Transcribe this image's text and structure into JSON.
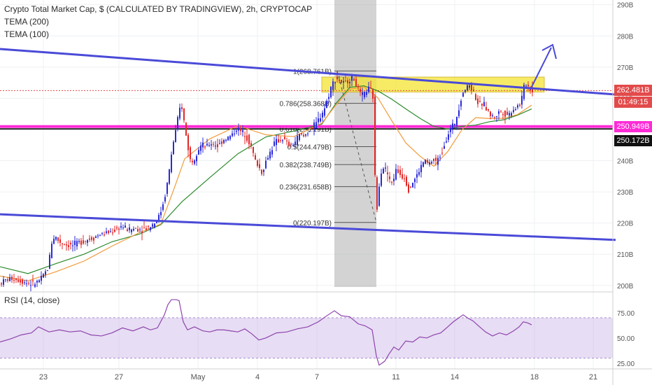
{
  "chart_data": {
    "type": "candlestick",
    "title": "Crypto Total Market Cap, $ (CALCULATED BY TRADINGVIEW), 2h, CRYPTOCAP",
    "indicators": [
      "TEMA (200)",
      "TEMA (100)"
    ],
    "y_axis": {
      "ticks": [
        "200B",
        "210B",
        "220B",
        "230B",
        "240B",
        "250B",
        "260B",
        "270B",
        "280B",
        "290B"
      ],
      "range": [
        199.5,
        291.5
      ]
    },
    "x_axis": {
      "ticks": [
        "23",
        "27",
        "May",
        "4",
        "7",
        "11",
        "14",
        "18",
        "21"
      ]
    },
    "price_labels": {
      "last": "262.481B",
      "countdown": "01:49:15",
      "magenta_level": "250.949B",
      "black_level": "250.172B"
    },
    "levels": {
      "last": 262.481,
      "magenta": 250.949,
      "black": 250.172
    },
    "fibonacci": [
      {
        "label": "1(268.761B)",
        "value": 268.761
      },
      {
        "label": "0.786(258.368B)",
        "value": 258.368
      },
      {
        "label": "0.618(250.191B)",
        "value": 250.191
      },
      {
        "label": "0.5(244.479B)",
        "value": 244.479
      },
      {
        "label": "0.382(238.749B)",
        "value": 238.749
      },
      {
        "label": "0.236(231.658B)",
        "value": 231.658
      },
      {
        "label": "0(220.197B)",
        "value": 220.197
      }
    ],
    "resistance_zone": [
      262.0,
      266.8
    ],
    "upper_trendline": [
      [
        0,
        275.8
      ],
      [
        880,
        261.2
      ]
    ],
    "lower_trendline": [
      [
        0,
        222.8
      ],
      [
        880,
        214.6
      ]
    ],
    "series_path": [
      [
        0,
        200.5
      ],
      [
        10,
        201.8
      ],
      [
        20,
        202.3
      ],
      [
        30,
        201.6
      ],
      [
        40,
        200.8
      ],
      [
        50,
        200.4
      ],
      [
        60,
        202.0
      ],
      [
        70,
        205.5
      ],
      [
        75,
        213.5
      ],
      [
        80,
        216.0
      ],
      [
        85,
        214.2
      ],
      [
        95,
        213.1
      ],
      [
        105,
        212.8
      ],
      [
        115,
        213.9
      ],
      [
        125,
        214.6
      ],
      [
        135,
        215.3
      ],
      [
        145,
        216.4
      ],
      [
        155,
        216.9
      ],
      [
        165,
        217.6
      ],
      [
        175,
        219.0
      ],
      [
        185,
        217.8
      ],
      [
        195,
        218.2
      ],
      [
        205,
        217.9
      ],
      [
        215,
        218.9
      ],
      [
        222,
        220.0
      ],
      [
        230,
        222.6
      ],
      [
        237,
        228.4
      ],
      [
        242,
        234.5
      ],
      [
        248,
        244.5
      ],
      [
        252,
        248.8
      ],
      [
        256,
        253.5
      ],
      [
        260,
        258.6
      ],
      [
        263,
        255.4
      ],
      [
        266,
        250.0
      ],
      [
        270,
        244.6
      ],
      [
        274,
        239.7
      ],
      [
        278,
        240.2
      ],
      [
        284,
        243.5
      ],
      [
        290,
        245.1
      ],
      [
        296,
        244.2
      ],
      [
        302,
        245.6
      ],
      [
        308,
        245.3
      ],
      [
        314,
        244.6
      ],
      [
        320,
        246.7
      ],
      [
        326,
        247.2
      ],
      [
        332,
        248.0
      ],
      [
        336,
        249.1
      ],
      [
        340,
        250.4
      ],
      [
        346,
        249.3
      ],
      [
        352,
        248.6
      ],
      [
        358,
        245.8
      ],
      [
        362,
        243.4
      ],
      [
        366,
        240.1
      ],
      [
        372,
        237.8
      ],
      [
        376,
        236.0
      ],
      [
        382,
        240.1
      ],
      [
        388,
        243.0
      ],
      [
        394,
        245.7
      ],
      [
        400,
        246.5
      ],
      [
        406,
        247.1
      ],
      [
        412,
        245.5
      ],
      [
        418,
        244.6
      ],
      [
        424,
        246.3
      ],
      [
        430,
        248.4
      ],
      [
        436,
        247.7
      ],
      [
        442,
        249.4
      ],
      [
        448,
        250.7
      ],
      [
        454,
        252.0
      ],
      [
        460,
        254.5
      ],
      [
        466,
        257.2
      ],
      [
        470,
        260.0
      ],
      [
        474,
        263.2
      ],
      [
        478,
        265.2
      ],
      [
        482,
        266.7
      ],
      [
        488,
        265.3
      ],
      [
        494,
        264.6
      ],
      [
        500,
        266.0
      ],
      [
        506,
        266.7
      ],
      [
        512,
        263.7
      ],
      [
        518,
        260.4
      ],
      [
        524,
        262.0
      ],
      [
        530,
        263.3
      ],
      [
        536,
        259.5
      ],
      [
        538,
        226.5
      ],
      [
        540,
        223.5
      ],
      [
        544,
        234.0
      ],
      [
        548,
        238.3
      ],
      [
        554,
        236.8
      ],
      [
        560,
        232.4
      ],
      [
        564,
        234.4
      ],
      [
        568,
        237.1
      ],
      [
        574,
        235.5
      ],
      [
        580,
        234.6
      ],
      [
        586,
        230.5
      ],
      [
        590,
        232.6
      ],
      [
        596,
        234.6
      ],
      [
        602,
        237.4
      ],
      [
        608,
        240.2
      ],
      [
        614,
        238.8
      ],
      [
        620,
        240.0
      ],
      [
        626,
        239.6
      ],
      [
        632,
        242.3
      ],
      [
        636,
        245.0
      ],
      [
        640,
        247.5
      ],
      [
        646,
        250.4
      ],
      [
        652,
        252.2
      ],
      [
        656,
        255.8
      ],
      [
        660,
        259.6
      ],
      [
        664,
        262.5
      ],
      [
        668,
        263.3
      ],
      [
        672,
        264.4
      ],
      [
        676,
        263.1
      ],
      [
        680,
        261.2
      ],
      [
        686,
        257.5
      ],
      [
        692,
        258.4
      ],
      [
        698,
        256.3
      ],
      [
        704,
        254.0
      ],
      [
        710,
        254.4
      ],
      [
        716,
        255.8
      ],
      [
        722,
        255.2
      ],
      [
        728,
        254.6
      ],
      [
        734,
        256.3
      ],
      [
        740,
        257.3
      ],
      [
        746,
        258.4
      ],
      [
        750,
        263.4
      ],
      [
        754,
        264.8
      ],
      [
        758,
        263.1
      ],
      [
        762,
        262.5
      ]
    ],
    "tema_200_path": [
      [
        0,
        206
      ],
      [
        40,
        203.8
      ],
      [
        80,
        207.0
      ],
      [
        120,
        210.0
      ],
      [
        160,
        214.0
      ],
      [
        200,
        216.5
      ],
      [
        230,
        219.5
      ],
      [
        260,
        226.8
      ],
      [
        300,
        234.6
      ],
      [
        340,
        242.2
      ],
      [
        380,
        247.6
      ],
      [
        420,
        249.5
      ],
      [
        460,
        251.7
      ],
      [
        480,
        258.3
      ],
      [
        500,
        263.5
      ],
      [
        520,
        264.0
      ],
      [
        540,
        262.4
      ],
      [
        560,
        259.7
      ],
      [
        580,
        256.6
      ],
      [
        600,
        253.6
      ],
      [
        620,
        251.0
      ],
      [
        640,
        250.1
      ],
      [
        660,
        251.0
      ],
      [
        680,
        251.4
      ],
      [
        700,
        252.5
      ],
      [
        720,
        253.1
      ],
      [
        740,
        254.6
      ],
      [
        760,
        256.6
      ]
    ],
    "tema_100_path": [
      [
        0,
        203
      ],
      [
        40,
        201.5
      ],
      [
        80,
        204.4
      ],
      [
        120,
        207.8
      ],
      [
        160,
        212.6
      ],
      [
        200,
        217.0
      ],
      [
        230,
        219.7
      ],
      [
        248,
        230.5
      ],
      [
        264,
        240.6
      ],
      [
        300,
        247.0
      ],
      [
        340,
        251.2
      ],
      [
        380,
        248.3
      ],
      [
        420,
        247.7
      ],
      [
        460,
        252.0
      ],
      [
        480,
        257.8
      ],
      [
        500,
        262.9
      ],
      [
        520,
        263.7
      ],
      [
        540,
        260.2
      ],
      [
        560,
        252.8
      ],
      [
        580,
        245.7
      ],
      [
        600,
        241.5
      ],
      [
        620,
        238.2
      ],
      [
        640,
        242.9
      ],
      [
        660,
        249.8
      ],
      [
        680,
        253.8
      ],
      [
        700,
        253.5
      ],
      [
        720,
        253.6
      ],
      [
        740,
        254.8
      ],
      [
        760,
        257.8
      ]
    ],
    "rsi": {
      "label": "RSI (14, close)",
      "ticks": [
        "25.00",
        "50.00",
        "75.00"
      ],
      "band": [
        30,
        70
      ],
      "range": [
        20,
        95
      ],
      "path": [
        [
          0,
          46
        ],
        [
          15,
          49
        ],
        [
          30,
          53
        ],
        [
          45,
          55
        ],
        [
          55,
          61
        ],
        [
          70,
          56
        ],
        [
          85,
          58
        ],
        [
          100,
          56
        ],
        [
          115,
          57
        ],
        [
          130,
          53
        ],
        [
          145,
          52
        ],
        [
          160,
          55
        ],
        [
          175,
          60
        ],
        [
          190,
          57
        ],
        [
          205,
          61
        ],
        [
          215,
          58
        ],
        [
          225,
          60
        ],
        [
          235,
          73
        ],
        [
          240,
          83
        ],
        [
          245,
          88
        ],
        [
          252,
          88
        ],
        [
          256,
          87
        ],
        [
          262,
          66
        ],
        [
          268,
          58
        ],
        [
          278,
          61
        ],
        [
          290,
          57
        ],
        [
          300,
          56
        ],
        [
          310,
          58
        ],
        [
          320,
          58
        ],
        [
          330,
          57
        ],
        [
          340,
          56
        ],
        [
          350,
          59
        ],
        [
          360,
          54
        ],
        [
          370,
          48
        ],
        [
          380,
          50
        ],
        [
          395,
          55
        ],
        [
          410,
          56
        ],
        [
          425,
          59
        ],
        [
          440,
          61
        ],
        [
          455,
          66
        ],
        [
          465,
          71
        ],
        [
          478,
          77
        ],
        [
          488,
          72
        ],
        [
          500,
          71
        ],
        [
          512,
          64
        ],
        [
          522,
          62
        ],
        [
          532,
          58
        ],
        [
          538,
          32
        ],
        [
          542,
          23
        ],
        [
          550,
          27
        ],
        [
          556,
          34
        ],
        [
          563,
          41
        ],
        [
          570,
          38
        ],
        [
          580,
          47
        ],
        [
          590,
          46
        ],
        [
          600,
          51
        ],
        [
          610,
          50
        ],
        [
          620,
          53
        ],
        [
          630,
          55
        ],
        [
          640,
          61
        ],
        [
          648,
          66
        ],
        [
          656,
          70
        ],
        [
          662,
          73
        ],
        [
          668,
          70
        ],
        [
          676,
          67
        ],
        [
          684,
          62
        ],
        [
          694,
          56
        ],
        [
          704,
          52
        ],
        [
          714,
          55
        ],
        [
          724,
          53
        ],
        [
          734,
          57
        ],
        [
          742,
          61
        ],
        [
          748,
          66
        ],
        [
          754,
          65
        ],
        [
          760,
          63
        ]
      ]
    }
  }
}
